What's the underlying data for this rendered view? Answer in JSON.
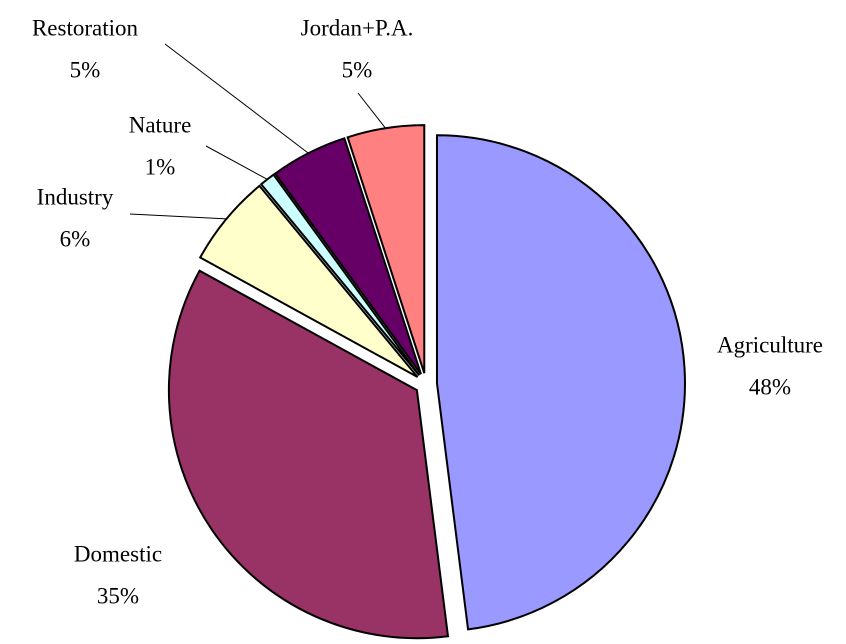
{
  "chart_data": {
    "type": "pie",
    "categories": [
      "Agriculture",
      "Domestic",
      "Industry",
      "Nature",
      "Restoration",
      "Jordan+P.A."
    ],
    "values": [
      48,
      35,
      6,
      1,
      5,
      5
    ],
    "value_labels": [
      "48%",
      "35%",
      "6%",
      "1%",
      "5%",
      "5%"
    ],
    "colors": [
      "#9999ff",
      "#993366",
      "#ffffcc",
      "#ccffff",
      "#660066",
      "#ff8080"
    ]
  }
}
